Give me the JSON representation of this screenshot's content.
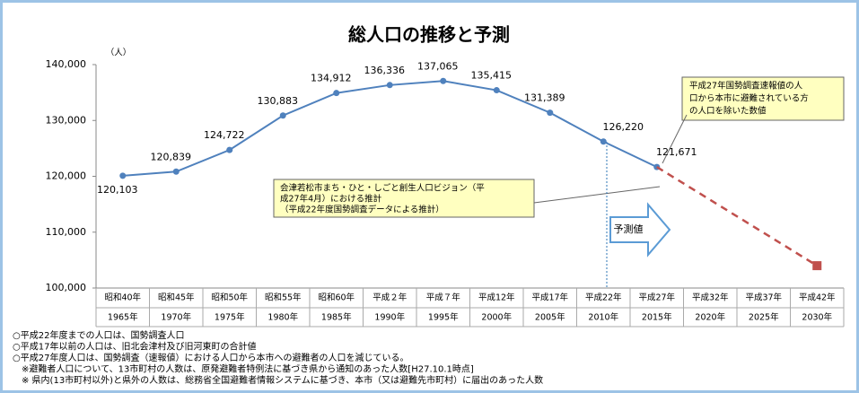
{
  "chart_data": {
    "type": "line",
    "title": "総人口の推移と予測",
    "y_unit": "（人）",
    "categories_era": [
      "昭和40年",
      "昭和45年",
      "昭和50年",
      "昭和55年",
      "昭和60年",
      "平成２年",
      "平成７年",
      "平成12年",
      "平成17年",
      "平成22年",
      "平成27年",
      "平成32年",
      "平成37年",
      "平成42年"
    ],
    "categories": [
      "1965年",
      "1970年",
      "1975年",
      "1980年",
      "1985年",
      "1990年",
      "1995年",
      "2000年",
      "2005年",
      "2010年",
      "2015年",
      "2020年",
      "2025年",
      "2030年"
    ],
    "series": [
      {
        "color": "#4f81bd",
        "values": [
          120103,
          120839,
          124722,
          130883,
          134912,
          136336,
          137065,
          135415,
          131389,
          126220,
          121671,
          null,
          null,
          null
        ],
        "value_labels": [
          "120,103",
          "120,839",
          "124,722",
          "130,883",
          "134,912",
          "136,336",
          "137,065",
          "135,415",
          "131,389",
          "126,220",
          "121,671",
          null,
          null,
          null
        ]
      },
      {
        "color": "#c0504d",
        "dashed": true,
        "values": [
          null,
          null,
          null,
          null,
          null,
          null,
          null,
          null,
          null,
          null,
          121671,
          115781,
          109890,
          104000
        ]
      }
    ],
    "ylim": [
      100000,
      140000
    ],
    "yticks": [
      {
        "value": 100000,
        "label": "100,000"
      },
      {
        "value": 110000,
        "label": "110,000"
      },
      {
        "value": 120000,
        "label": "120,000"
      },
      {
        "value": 130000,
        "label": "130,000"
      },
      {
        "value": 140000,
        "label": "140,000"
      }
    ],
    "callout_top": [
      "平成27年国勢調査速報値の人",
      "口から本市に避難されている方",
      "の人口を除いた数値"
    ],
    "callout_mid": [
      "会津若松市まち・ひと・しごと創生人口ビジョン（平",
      "成27年4月）における推計",
      "（平成22年度国勢調査データによる推計）"
    ],
    "forecast_label": "予測値",
    "notes": [
      "○平成22年度までの人口は、国勢調査人口",
      "○平成17年以前の人口は、旧北会津村及び旧河東町の合計値",
      "○平成27年度人口は、国勢調査（速報値）における人口から本市への避難者の人口を減じている。",
      "　※避難者人口について、13市町村の人数は、原発避難者特例法に基づき県から通知のあった人数[H27.10.1時点]",
      "　※ 県内(13市町村以外)と県外の人数は、総務省全国避難者情報システムに基づき、本市（又は避難先市町村）に届出のあった人数"
    ]
  }
}
